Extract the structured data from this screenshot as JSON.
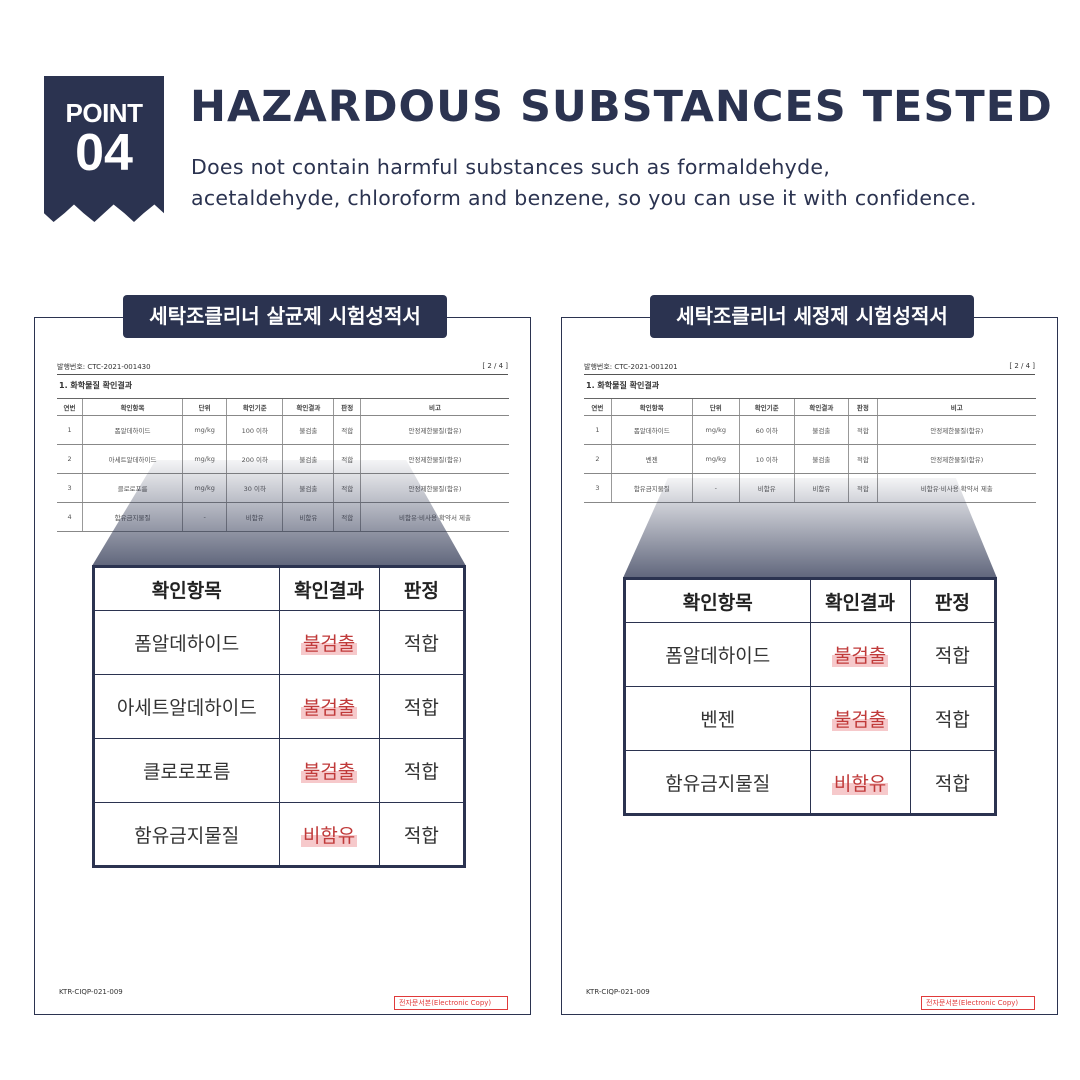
{
  "badge": {
    "label": "POINT",
    "number": "04"
  },
  "title": "HAZARDOUS SUBSTANCES TESTED",
  "subtitle": [
    "Does not contain harmful substances such as formaldehyde,",
    "acetaldehyde, chloroform and benzene, so you can use it with confidence."
  ],
  "colors": {
    "navy": "#2b3350",
    "highlight": "#f6c9cb",
    "stamp": "#e03a3a"
  },
  "docs": [
    {
      "title": "세탁조클리너 살균제 시험성적서",
      "issue_no": "발행번호: CTC-2021-001430",
      "page": "[ 2 / 4 ]",
      "section": "1. 화학물질 확인결과",
      "headers": [
        "연번",
        "확인항목",
        "단위",
        "확인기준",
        "확인결과",
        "판정",
        "비고"
      ],
      "rows": [
        [
          "1",
          "폼알데하이드",
          "mg/kg",
          "100 이하",
          "불검출",
          "적합",
          "안정제한물질(함유)"
        ],
        [
          "2",
          "아세트알데하이드",
          "mg/kg",
          "200 이하",
          "불검출",
          "적합",
          "안정제한물질(함유)"
        ],
        [
          "3",
          "클로로포름",
          "mg/kg",
          "30 이하",
          "불검출",
          "적합",
          "안정제한물질(함유)"
        ],
        [
          "4",
          "함유금지물질",
          "-",
          "비함유",
          "비함유",
          "적합",
          "비함유·비사용 확약서 제출"
        ]
      ],
      "zoom_headers": [
        "확인항목",
        "확인결과",
        "판정"
      ],
      "zoom_rows": [
        [
          "폼알데하이드",
          "불검출",
          "적합"
        ],
        [
          "아세트알데하이드",
          "불검출",
          "적합"
        ],
        [
          "클로로포름",
          "불검출",
          "적합"
        ],
        [
          "함유금지물질",
          "비함유",
          "적합"
        ]
      ],
      "footer": "KTR-CIQP-021-009",
      "stamp": "전자문서본(Electronic Copy)"
    },
    {
      "title": "세탁조클리너 세정제 시험성적서",
      "issue_no": "발행번호: CTC-2021-001201",
      "page": "[ 2 / 4 ]",
      "section": "1. 화학물질 확인결과",
      "headers": [
        "연번",
        "확인항목",
        "단위",
        "확인기준",
        "확인결과",
        "판정",
        "비고"
      ],
      "rows": [
        [
          "1",
          "폼알데하이드",
          "mg/kg",
          "60 이하",
          "불검출",
          "적합",
          "안정제한물질(함유)"
        ],
        [
          "2",
          "벤젠",
          "mg/kg",
          "10 이하",
          "불검출",
          "적합",
          "안정제한물질(함유)"
        ],
        [
          "3",
          "함유금지물질",
          "-",
          "비함유",
          "비함유",
          "적합",
          "비함유·비사용 확약서 제출"
        ]
      ],
      "zoom_headers": [
        "확인항목",
        "확인결과",
        "판정"
      ],
      "zoom_rows": [
        [
          "폼알데하이드",
          "불검출",
          "적합"
        ],
        [
          "벤젠",
          "불검출",
          "적합"
        ],
        [
          "함유금지물질",
          "비함유",
          "적합"
        ]
      ],
      "footer": "KTR-CIQP-021-009",
      "stamp": "전자문서본(Electronic Copy)"
    }
  ]
}
